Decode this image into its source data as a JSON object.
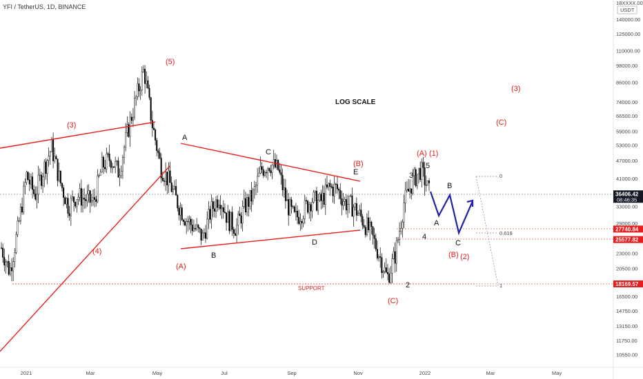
{
  "header": {
    "title": "YFI / TetherUS, 1D, BINANCE",
    "scale_top": "18XXXX.00",
    "currency": "USDT"
  },
  "colors": {
    "accent_red": "#e81c1c",
    "price_tag_dark": "#131722",
    "projection_blue": "#1e22a8",
    "candle": "#000000"
  },
  "chart_data": {
    "type": "candlestick",
    "scale": "log",
    "xlabels": [
      "2021",
      "Mar",
      "May",
      "Jul",
      "Sep",
      "Nov",
      "2022",
      "Mar",
      "May"
    ],
    "ylabels": [
      "140000.00",
      "125000.00",
      "110000.00",
      "98000.00",
      "86000.00",
      "74000.00",
      "66500.00",
      "59000.00",
      "53000.00",
      "47000.00",
      "41000.00",
      "33000.00",
      "29000.00",
      "23000.00",
      "20500.00",
      "16500.00",
      "14750.00",
      "13150.00",
      "11750.00",
      "10550.00"
    ],
    "ylim": [
      10000,
      180000
    ],
    "price_tags": [
      {
        "label": "36406.42",
        "sub": "08:46:35",
        "value": 36406,
        "style": "dark"
      },
      {
        "label": "27740.84",
        "value": 27741,
        "style": "red"
      },
      {
        "label": "25577.82",
        "value": 25578,
        "style": "red"
      },
      {
        "label": "18169.57",
        "value": 18170,
        "style": "red"
      }
    ],
    "annotations_text": {
      "log_scale": "LOG SCALE",
      "support": "SUPPORT",
      "fib_0": "0",
      "fib_618": "0.618",
      "fib_1": "1"
    },
    "wave_labels": [
      {
        "text": "(3)",
        "color": "red"
      },
      {
        "text": "(5)",
        "color": "red"
      },
      {
        "text": "(4)",
        "color": "red"
      },
      {
        "text": "(A)",
        "color": "red"
      },
      {
        "text": "A",
        "color": "black"
      },
      {
        "text": "B",
        "color": "black"
      },
      {
        "text": "C",
        "color": "black"
      },
      {
        "text": "D",
        "color": "black"
      },
      {
        "text": "E",
        "color": "black"
      },
      {
        "text": "(B)",
        "color": "red"
      },
      {
        "text": "(C)",
        "color": "red"
      },
      {
        "text": "2",
        "color": "black"
      },
      {
        "text": "3",
        "color": "black"
      },
      {
        "text": "4",
        "color": "black"
      },
      {
        "text": "5",
        "color": "black"
      },
      {
        "text": "(A)",
        "color": "red"
      },
      {
        "text": "(1)",
        "color": "red"
      },
      {
        "text": "A",
        "color": "black"
      },
      {
        "text": "B",
        "color": "black"
      },
      {
        "text": "C",
        "color": "black"
      },
      {
        "text": "(B)",
        "color": "red"
      },
      {
        "text": "(2)",
        "color": "red"
      },
      {
        "text": "(C)",
        "color": "red"
      },
      {
        "text": "(3)",
        "color": "red"
      }
    ],
    "series": [
      {
        "values": [
          24000,
          20000,
          28000,
          42000,
          36000,
          44000,
          52000,
          40000,
          33000,
          36000,
          35000,
          34000,
          45000,
          48000,
          43000,
          58000,
          75000,
          95000,
          62000,
          45000,
          40000,
          34000,
          30000,
          28000,
          26000,
          32000,
          36000,
          30000,
          28000,
          33000,
          36000,
          44000,
          46000,
          44000,
          34000,
          30000,
          32000,
          35000,
          34000,
          38000,
          38000,
          34000,
          33000,
          30000,
          27000,
          23000,
          19000,
          23000,
          34000,
          40000,
          44000,
          37000
        ]
      }
    ]
  }
}
